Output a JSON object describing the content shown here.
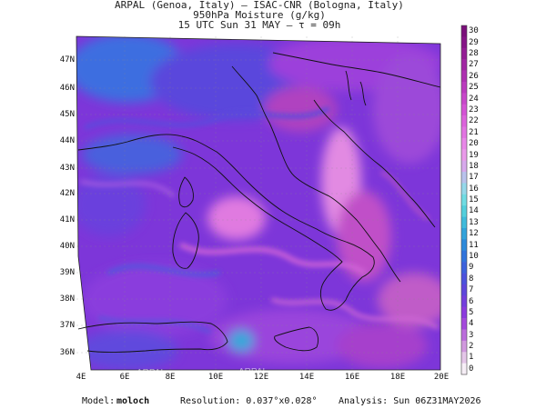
{
  "header": {
    "line1": "ARPAL (Genoa, Italy)  —  ISAC-CNR (Bologna, Italy)",
    "line2": "950hPa Moisture (g/kg)",
    "line3": "15 UTC Sun 31 MAY  —  τ = 09h"
  },
  "map": {
    "lat_labels": [
      "47N",
      "46N",
      "45N",
      "44N",
      "43N",
      "42N",
      "41N",
      "40N",
      "39N",
      "38N",
      "37N",
      "36N"
    ],
    "lon_labels": [
      "4E",
      "6E",
      "8E",
      "10E",
      "12E",
      "14E",
      "16E",
      "18E",
      "20E"
    ],
    "watermark": "ARPAL"
  },
  "colorbar": {
    "labels": [
      "30",
      "29",
      "28",
      "27",
      "26",
      "25",
      "24",
      "23",
      "22",
      "21",
      "20",
      "19",
      "18",
      "17",
      "16",
      "15",
      "14",
      "13",
      "12",
      "11",
      "10",
      "9",
      "8",
      "7",
      "6",
      "5",
      "4",
      "3",
      "2",
      "1",
      "0"
    ],
    "colors": [
      "#7a0f7a",
      "#861487",
      "#941c95",
      "#a126a3",
      "#ae30b1",
      "#bb3bbe",
      "#c847ca",
      "#d453d5",
      "#dc63dc",
      "#e274e2",
      "#e887e8",
      "#ea9aea",
      "#d7a9ec",
      "#b9c2ec",
      "#95d8ea",
      "#70dce3",
      "#54cfdc",
      "#40bbdb",
      "#32a3db",
      "#2d8adb",
      "#3074dc",
      "#3c62dd",
      "#4c52dd",
      "#5e46dc",
      "#743edd",
      "#8c3ade",
      "#a448dc",
      "#bb6ddc",
      "#d199de",
      "#e4c6e8",
      "#f6eef6"
    ]
  },
  "footer": {
    "model_label": "Model:",
    "model_value": "moloch",
    "resolution": "Resolution: 0.037°x0.028°",
    "analysis": "Analysis: Sun 06Z31MAY2026"
  }
}
